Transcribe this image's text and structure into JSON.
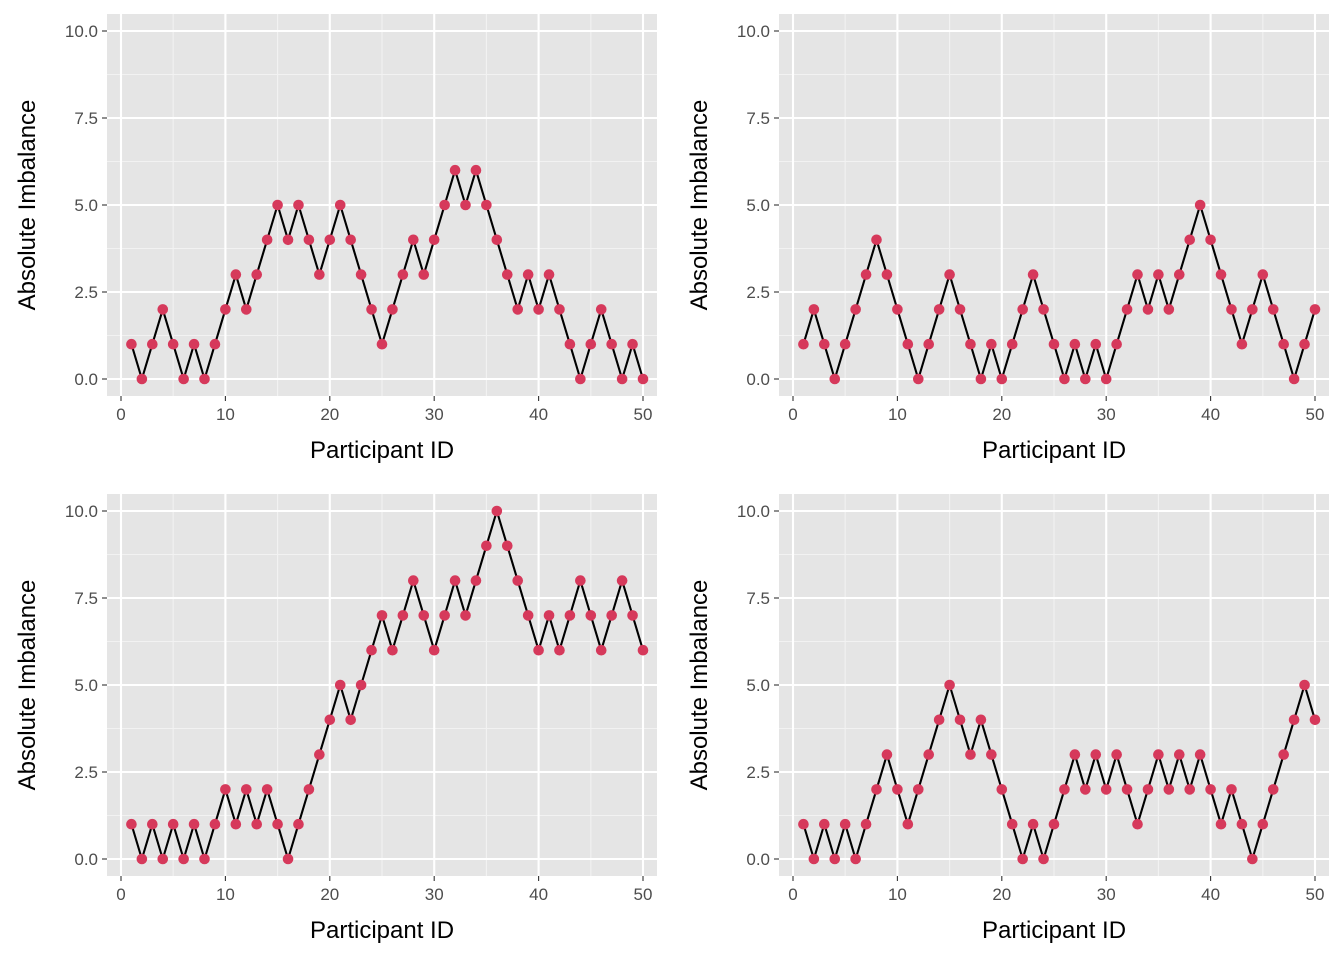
{
  "colors": {
    "panel_background": "#e5e5e5",
    "grid_major": "#ffffff",
    "grid_minor": "#f2f2f2",
    "line": "#000000",
    "point": "#d6395b",
    "tick": "#333333"
  },
  "chart_data": [
    {
      "type": "line",
      "xlabel": "Participant ID",
      "ylabel": "Absolute Imbalance",
      "xlim": [
        0,
        50
      ],
      "ylim": [
        0,
        10
      ],
      "xticks": [
        0,
        10,
        20,
        30,
        40,
        50
      ],
      "yticks": [
        "0.0",
        "2.5",
        "5.0",
        "7.5",
        "10.0"
      ],
      "grid": true,
      "markers": true,
      "x": [
        1,
        2,
        3,
        4,
        5,
        6,
        7,
        8,
        9,
        10,
        11,
        12,
        13,
        14,
        15,
        16,
        17,
        18,
        19,
        20,
        21,
        22,
        23,
        24,
        25,
        26,
        27,
        28,
        29,
        30,
        31,
        32,
        33,
        34,
        35,
        36,
        37,
        38,
        39,
        40,
        41,
        42,
        43,
        44,
        45,
        46,
        47,
        48,
        49,
        50
      ],
      "values": [
        1,
        0,
        1,
        2,
        1,
        0,
        1,
        0,
        1,
        2,
        3,
        2,
        3,
        4,
        5,
        4,
        5,
        4,
        3,
        4,
        5,
        4,
        3,
        2,
        1,
        2,
        3,
        4,
        3,
        4,
        5,
        6,
        5,
        6,
        5,
        4,
        3,
        2,
        3,
        2,
        3,
        2,
        1,
        0,
        1,
        2,
        1,
        0,
        1,
        0
      ]
    },
    {
      "type": "line",
      "xlabel": "Participant ID",
      "ylabel": "Absolute Imbalance",
      "xlim": [
        0,
        50
      ],
      "ylim": [
        0,
        10
      ],
      "xticks": [
        0,
        10,
        20,
        30,
        40,
        50
      ],
      "yticks": [
        "0.0",
        "2.5",
        "5.0",
        "7.5",
        "10.0"
      ],
      "grid": true,
      "markers": true,
      "x": [
        1,
        2,
        3,
        4,
        5,
        6,
        7,
        8,
        9,
        10,
        11,
        12,
        13,
        14,
        15,
        16,
        17,
        18,
        19,
        20,
        21,
        22,
        23,
        24,
        25,
        26,
        27,
        28,
        29,
        30,
        31,
        32,
        33,
        34,
        35,
        36,
        37,
        38,
        39,
        40,
        41,
        42,
        43,
        44,
        45,
        46,
        47,
        48,
        49,
        50
      ],
      "values": [
        1,
        2,
        1,
        0,
        1,
        2,
        3,
        4,
        3,
        2,
        1,
        0,
        1,
        2,
        3,
        2,
        1,
        0,
        1,
        0,
        1,
        2,
        3,
        2,
        1,
        0,
        1,
        0,
        1,
        0,
        1,
        2,
        3,
        2,
        3,
        2,
        3,
        4,
        5,
        4,
        3,
        2,
        1,
        2,
        3,
        2,
        1,
        0,
        1,
        2
      ]
    },
    {
      "type": "line",
      "xlabel": "Participant ID",
      "ylabel": "Absolute Imbalance",
      "xlim": [
        0,
        50
      ],
      "ylim": [
        0,
        10
      ],
      "xticks": [
        0,
        10,
        20,
        30,
        40,
        50
      ],
      "yticks": [
        "0.0",
        "2.5",
        "5.0",
        "7.5",
        "10.0"
      ],
      "grid": true,
      "markers": true,
      "x": [
        1,
        2,
        3,
        4,
        5,
        6,
        7,
        8,
        9,
        10,
        11,
        12,
        13,
        14,
        15,
        16,
        17,
        18,
        19,
        20,
        21,
        22,
        23,
        24,
        25,
        26,
        27,
        28,
        29,
        30,
        31,
        32,
        33,
        34,
        35,
        36,
        37,
        38,
        39,
        40,
        41,
        42,
        43,
        44,
        45,
        46,
        47,
        48,
        49,
        50
      ],
      "values": [
        1,
        0,
        1,
        0,
        1,
        0,
        1,
        0,
        1,
        2,
        1,
        2,
        1,
        2,
        1,
        0,
        1,
        2,
        3,
        4,
        5,
        4,
        5,
        6,
        7,
        6,
        7,
        8,
        7,
        6,
        7,
        8,
        7,
        8,
        9,
        10,
        9,
        8,
        7,
        6,
        7,
        6,
        7,
        8,
        7,
        6,
        7,
        8,
        7,
        6
      ]
    },
    {
      "type": "line",
      "xlabel": "Participant ID",
      "ylabel": "Absolute Imbalance",
      "xlim": [
        0,
        50
      ],
      "ylim": [
        0,
        10
      ],
      "xticks": [
        0,
        10,
        20,
        30,
        40,
        50
      ],
      "yticks": [
        "0.0",
        "2.5",
        "5.0",
        "7.5",
        "10.0"
      ],
      "grid": true,
      "markers": true,
      "x": [
        1,
        2,
        3,
        4,
        5,
        6,
        7,
        8,
        9,
        10,
        11,
        12,
        13,
        14,
        15,
        16,
        17,
        18,
        19,
        20,
        21,
        22,
        23,
        24,
        25,
        26,
        27,
        28,
        29,
        30,
        31,
        32,
        33,
        34,
        35,
        36,
        37,
        38,
        39,
        40,
        41,
        42,
        43,
        44,
        45,
        46,
        47,
        48,
        49,
        50
      ],
      "values": [
        1,
        0,
        1,
        0,
        1,
        0,
        1,
        2,
        3,
        2,
        1,
        2,
        3,
        4,
        5,
        4,
        3,
        4,
        3,
        2,
        1,
        0,
        1,
        0,
        1,
        2,
        3,
        2,
        3,
        2,
        3,
        2,
        1,
        2,
        3,
        2,
        3,
        2,
        3,
        2,
        1,
        2,
        1,
        0,
        1,
        2,
        3,
        4,
        5,
        4
      ]
    }
  ]
}
